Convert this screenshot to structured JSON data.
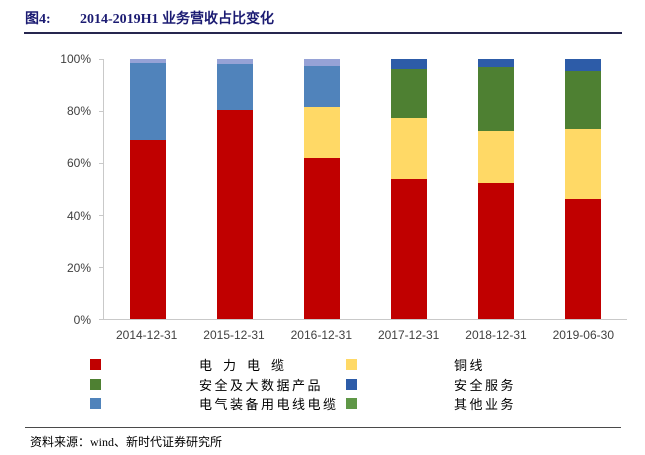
{
  "header": {
    "figure_label": "图4:",
    "title": "2014-2019H1 业务营收占比变化"
  },
  "footer": {
    "source": "资料来源：wind、新时代证券研究所"
  },
  "chart_data": {
    "type": "bar",
    "stacked": true,
    "orientation": "vertical",
    "title": "2014-2019H1 业务营收占比变化",
    "unit": "%",
    "ylim": [
      0,
      100
    ],
    "yticks": [
      "0%",
      "20%",
      "40%",
      "60%",
      "80%",
      "100%"
    ],
    "grid": false,
    "legend_position": "bottom",
    "categories": [
      "2014-12-31",
      "2015-12-31",
      "2016-12-31",
      "2017-12-31",
      "2018-12-31",
      "2019-06-30"
    ],
    "series": [
      {
        "name": "电力电缆",
        "color": "#C00000",
        "values": [
          69,
          80.5,
          62,
          54,
          52.5,
          46
        ]
      },
      {
        "name": "铜线",
        "color": "#FFD966",
        "values": [
          0,
          0,
          19.5,
          23.5,
          20,
          27
        ]
      },
      {
        "name": "安全及大数据产品",
        "color": "#4E8032",
        "values": [
          0,
          0,
          0,
          18.5,
          24.5,
          22.5
        ]
      },
      {
        "name": "安全服务",
        "color": "#2D5CA8",
        "values": [
          0,
          0,
          0,
          4,
          3,
          4.5
        ]
      },
      {
        "name": "电气装备用电线电缆",
        "color": "#5083BB",
        "values": [
          29.5,
          17.5,
          16,
          0,
          0,
          0
        ]
      },
      {
        "name": "其他业务",
        "color": "#96A2D6",
        "legend_color": "#5F9747",
        "values": [
          1.5,
          2,
          2.5,
          0,
          0,
          0
        ]
      }
    ],
    "legend_columns": [
      [
        "电力电缆",
        "安全及大数据产品",
        "电气装备用电线电缆"
      ],
      [
        "铜线",
        "安全服务",
        "其他业务"
      ]
    ]
  }
}
